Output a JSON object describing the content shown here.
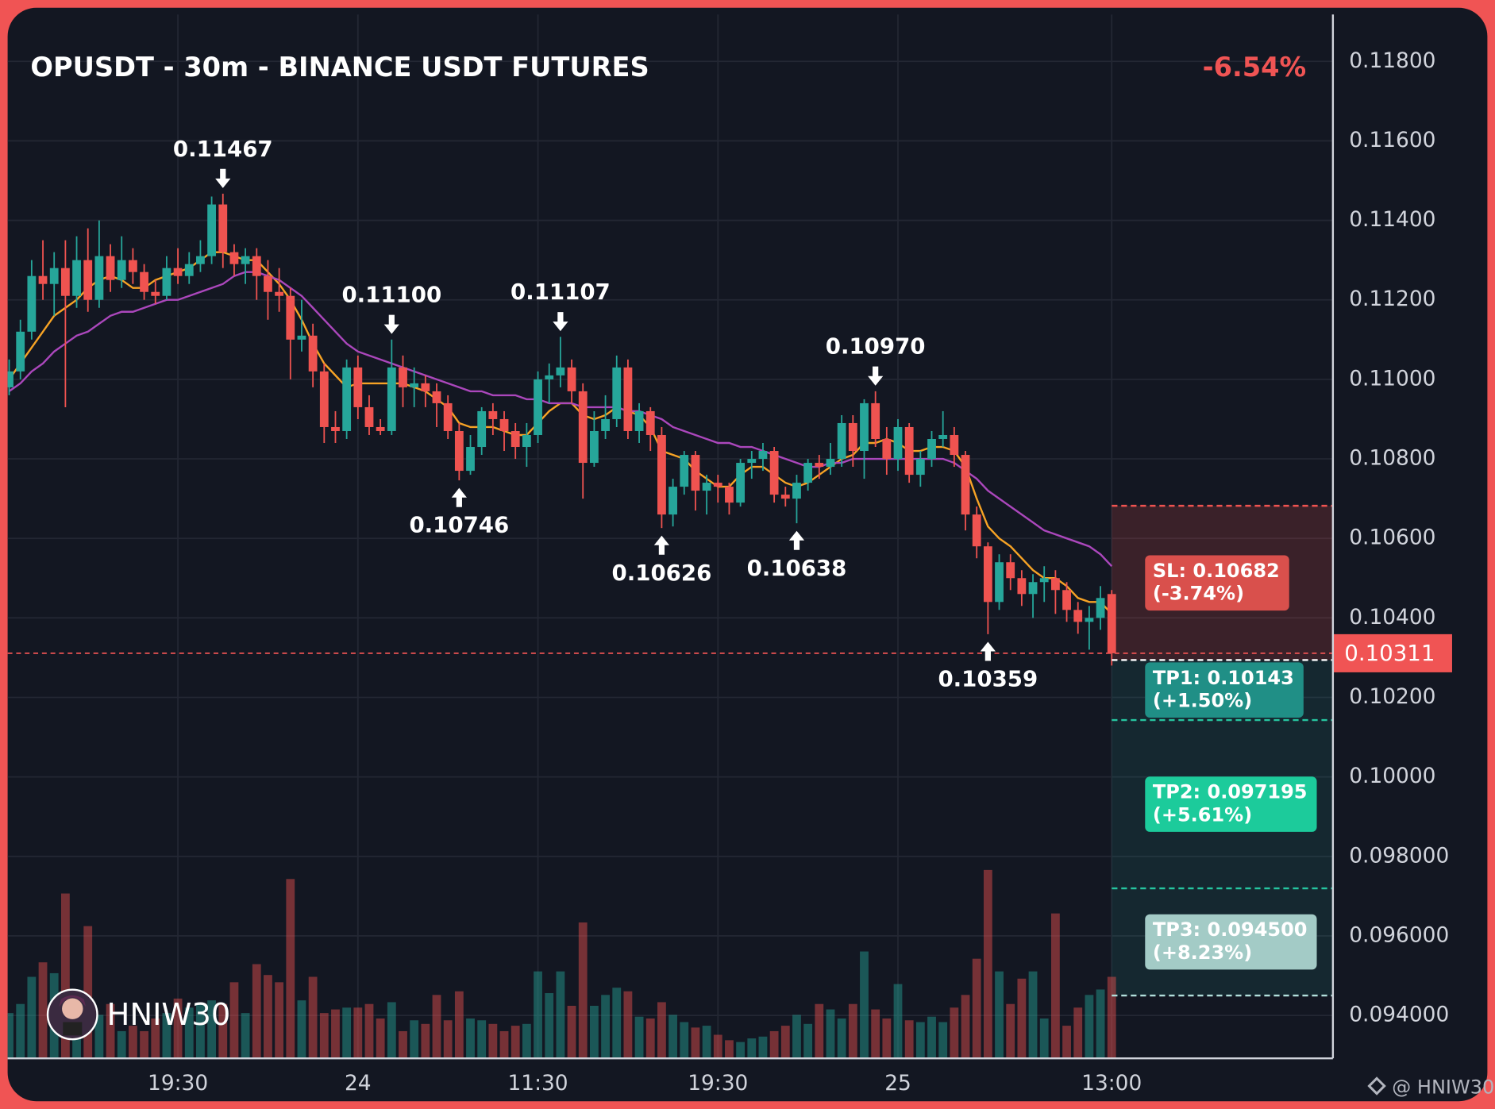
{
  "chart_data": {
    "type": "candlestick",
    "title": "OPUSDT - 30m - BINANCE USDT FUTURES",
    "change": "-6.54%",
    "up_color": "#26a69a",
    "down_color": "#ef5350",
    "grid": true,
    "ylim": [
      0.09292,
      0.11918
    ],
    "yticks": [
      {
        "value": 0.118,
        "label": "0.11800"
      },
      {
        "value": 0.116,
        "label": "0.11600"
      },
      {
        "value": 0.114,
        "label": "0.11400"
      },
      {
        "value": 0.112,
        "label": "0.11200"
      },
      {
        "value": 0.11,
        "label": "0.11000"
      },
      {
        "value": 0.108,
        "label": "0.10800"
      },
      {
        "value": 0.106,
        "label": "0.10600"
      },
      {
        "value": 0.104,
        "label": "0.10400"
      },
      {
        "value": 0.102,
        "label": "0.10200"
      },
      {
        "value": 0.1,
        "label": "0.10000"
      },
      {
        "value": 0.098,
        "label": "0.098000"
      },
      {
        "value": 0.096,
        "label": "0.096000"
      },
      {
        "value": 0.094,
        "label": "0.094000"
      }
    ],
    "categories": [
      null,
      null,
      null,
      null,
      null,
      null,
      null,
      null,
      null,
      null,
      null,
      null,
      null,
      null,
      null,
      "19:30",
      null,
      null,
      null,
      null,
      null,
      null,
      null,
      null,
      null,
      null,
      null,
      null,
      null,
      null,
      null,
      "24",
      null,
      null,
      null,
      null,
      null,
      null,
      null,
      null,
      null,
      null,
      null,
      null,
      null,
      null,
      null,
      "11:30",
      null,
      null,
      null,
      null,
      null,
      null,
      null,
      null,
      null,
      null,
      null,
      null,
      null,
      null,
      null,
      "19:30",
      null,
      null,
      null,
      null,
      null,
      null,
      null,
      null,
      null,
      null,
      null,
      null,
      null,
      null,
      null,
      "25",
      null,
      null,
      null,
      null,
      null,
      null,
      null,
      null,
      null,
      null,
      null,
      null,
      null,
      null,
      null,
      null,
      null,
      null,
      "13:00"
    ],
    "candles": [
      [
        0.1098,
        0.1105,
        0.1096,
        0.1102
      ],
      [
        0.1102,
        0.1115,
        0.11,
        0.1112
      ],
      [
        0.1112,
        0.113,
        0.111,
        0.1126
      ],
      [
        0.1126,
        0.1135,
        0.112,
        0.1124
      ],
      [
        0.1124,
        0.1132,
        0.1116,
        0.1128
      ],
      [
        0.1128,
        0.1135,
        0.1093,
        0.1121
      ],
      [
        0.1121,
        0.1136,
        0.1118,
        0.113
      ],
      [
        0.113,
        0.1138,
        0.1117,
        0.112
      ],
      [
        0.112,
        0.114,
        0.1118,
        0.1131
      ],
      [
        0.1131,
        0.1134,
        0.1122,
        0.1125
      ],
      [
        0.1125,
        0.1136,
        0.1123,
        0.113
      ],
      [
        0.113,
        0.1133,
        0.1124,
        0.1127
      ],
      [
        0.1127,
        0.1129,
        0.112,
        0.1122
      ],
      [
        0.1122,
        0.1125,
        0.1119,
        0.1121
      ],
      [
        0.1121,
        0.1131,
        0.112,
        0.1128
      ],
      [
        0.1128,
        0.1133,
        0.1124,
        0.1126
      ],
      [
        0.1126,
        0.1132,
        0.1124,
        0.1129
      ],
      [
        0.1129,
        0.1135,
        0.1127,
        0.1131
      ],
      [
        0.1131,
        0.1146,
        0.1129,
        0.1144
      ],
      [
        0.1144,
        0.11467,
        0.1128,
        0.1132
      ],
      [
        0.1132,
        0.1134,
        0.1126,
        0.1129
      ],
      [
        0.1129,
        0.1133,
        0.1124,
        0.1131
      ],
      [
        0.1131,
        0.1133,
        0.112,
        0.1126
      ],
      [
        0.1126,
        0.113,
        0.1115,
        0.1122
      ],
      [
        0.1122,
        0.1128,
        0.1117,
        0.1121
      ],
      [
        0.1121,
        0.1123,
        0.11,
        0.111
      ],
      [
        0.111,
        0.112,
        0.1107,
        0.1111
      ],
      [
        0.1111,
        0.1114,
        0.1098,
        0.1102
      ],
      [
        0.1102,
        0.1104,
        0.1084,
        0.1088
      ],
      [
        0.1088,
        0.1092,
        0.1084,
        0.1087
      ],
      [
        0.1087,
        0.1105,
        0.1085,
        0.1103
      ],
      [
        0.1103,
        0.1106,
        0.109,
        0.1093
      ],
      [
        0.1093,
        0.1096,
        0.1086,
        0.1088
      ],
      [
        0.1088,
        0.109,
        0.1086,
        0.1087
      ],
      [
        0.1087,
        0.111,
        0.1086,
        0.1103
      ],
      [
        0.1103,
        0.1106,
        0.1093,
        0.1098
      ],
      [
        0.1098,
        0.1103,
        0.1093,
        0.1099
      ],
      [
        0.1099,
        0.1101,
        0.1093,
        0.1097
      ],
      [
        0.1097,
        0.1099,
        0.1088,
        0.1094
      ],
      [
        0.1094,
        0.1096,
        0.1085,
        0.1087
      ],
      [
        0.1087,
        0.1089,
        0.10746,
        0.1077
      ],
      [
        0.1077,
        0.1086,
        0.1076,
        0.1083
      ],
      [
        0.1083,
        0.1093,
        0.1081,
        0.1092
      ],
      [
        0.1092,
        0.1094,
        0.1086,
        0.109
      ],
      [
        0.109,
        0.1092,
        0.1082,
        0.1087
      ],
      [
        0.1087,
        0.1089,
        0.108,
        0.1083
      ],
      [
        0.1083,
        0.1089,
        0.1078,
        0.1086
      ],
      [
        0.1086,
        0.1102,
        0.1084,
        0.11
      ],
      [
        0.11,
        0.1104,
        0.1094,
        0.1101
      ],
      [
        0.1101,
        0.11107,
        0.1098,
        0.1103
      ],
      [
        0.1103,
        0.1105,
        0.1094,
        0.1097
      ],
      [
        0.1097,
        0.1099,
        0.107,
        0.1079
      ],
      [
        0.1079,
        0.1092,
        0.1078,
        0.1087
      ],
      [
        0.1087,
        0.1096,
        0.1085,
        0.109
      ],
      [
        0.109,
        0.1106,
        0.1088,
        0.1103
      ],
      [
        0.1103,
        0.1105,
        0.1085,
        0.1087
      ],
      [
        0.1087,
        0.1094,
        0.1084,
        0.1092
      ],
      [
        0.1092,
        0.1093,
        0.1082,
        0.1086
      ],
      [
        0.1086,
        0.1088,
        0.10626,
        0.1066
      ],
      [
        0.1066,
        0.1075,
        0.1063,
        0.1073
      ],
      [
        0.1073,
        0.1082,
        0.1071,
        0.1081
      ],
      [
        0.1081,
        0.1082,
        0.1067,
        0.1072
      ],
      [
        0.1072,
        0.1076,
        0.1066,
        0.1074
      ],
      [
        0.1074,
        0.1076,
        0.1069,
        0.1073
      ],
      [
        0.1073,
        0.1074,
        0.1066,
        0.1069
      ],
      [
        0.1069,
        0.108,
        0.1068,
        0.1079
      ],
      [
        0.1079,
        0.1082,
        0.1075,
        0.108
      ],
      [
        0.108,
        0.1084,
        0.1077,
        0.1082
      ],
      [
        0.1082,
        0.1083,
        0.1069,
        0.1071
      ],
      [
        0.1071,
        0.1073,
        0.1068,
        0.107
      ],
      [
        0.107,
        0.1076,
        0.10638,
        0.1074
      ],
      [
        0.1074,
        0.108,
        0.1072,
        0.1079
      ],
      [
        0.1079,
        0.1081,
        0.1075,
        0.1078
      ],
      [
        0.1078,
        0.1084,
        0.1076,
        0.108
      ],
      [
        0.108,
        0.1091,
        0.1078,
        0.1089
      ],
      [
        0.1089,
        0.1091,
        0.1078,
        0.1082
      ],
      [
        0.1082,
        0.1095,
        0.1075,
        0.1094
      ],
      [
        0.1094,
        0.1097,
        0.1083,
        0.1085
      ],
      [
        0.1085,
        0.1088,
        0.1076,
        0.108
      ],
      [
        0.108,
        0.109,
        0.1077,
        0.1088
      ],
      [
        0.1088,
        0.1089,
        0.1074,
        0.1076
      ],
      [
        0.1076,
        0.1082,
        0.1073,
        0.108
      ],
      [
        0.108,
        0.1087,
        0.1078,
        0.1085
      ],
      [
        0.1085,
        0.1092,
        0.1083,
        0.1086
      ],
      [
        0.1086,
        0.1088,
        0.1078,
        0.1081
      ],
      [
        0.1081,
        0.1082,
        0.1062,
        0.1066
      ],
      [
        0.1066,
        0.1068,
        0.1055,
        0.1058
      ],
      [
        0.1058,
        0.1059,
        0.10359,
        0.1044
      ],
      [
        0.1044,
        0.1056,
        0.1042,
        0.1054
      ],
      [
        0.1054,
        0.1056,
        0.1047,
        0.105
      ],
      [
        0.105,
        0.1052,
        0.1043,
        0.1046
      ],
      [
        0.1046,
        0.1051,
        0.104,
        0.1049
      ],
      [
        0.1049,
        0.1053,
        0.1044,
        0.105
      ],
      [
        0.105,
        0.1052,
        0.1041,
        0.1047
      ],
      [
        0.1047,
        0.1049,
        0.1039,
        0.1042
      ],
      [
        0.1042,
        0.1044,
        0.1036,
        0.1039
      ],
      [
        0.1039,
        0.1043,
        0.1032,
        0.104
      ],
      [
        0.104,
        0.1048,
        0.1037,
        0.1045
      ],
      [
        0.1046,
        0.1047,
        0.1028,
        0.10311
      ]
    ],
    "volume_lim": [
      0,
      110
    ],
    "volume": [
      25,
      30,
      45,
      53,
      47,
      91,
      38,
      73,
      24,
      30,
      15,
      18,
      15,
      22,
      25,
      33,
      28,
      30,
      32,
      30,
      42,
      25,
      52,
      46,
      42,
      99,
      32,
      45,
      25,
      27,
      28,
      28,
      30,
      22,
      31,
      15,
      21,
      19,
      35,
      21,
      37,
      22,
      21,
      19,
      15,
      18,
      19,
      48,
      36,
      48,
      29,
      75,
      29,
      35,
      39,
      37,
      23,
      22,
      31,
      24,
      20,
      17,
      18,
      13,
      10,
      9,
      11,
      12,
      15,
      18,
      24,
      19,
      30,
      27,
      22,
      30,
      59,
      27,
      22,
      41,
      21,
      20,
      23,
      20,
      28,
      35,
      55,
      104,
      48,
      30,
      44,
      48,
      22,
      80,
      18,
      28,
      35,
      38,
      45
    ],
    "ma": [
      {
        "color": "#f7a325",
        "values": [
          0.11,
          0.1104,
          0.1108,
          0.1112,
          0.1116,
          0.1118,
          0.112,
          0.1123,
          0.1125,
          0.1126,
          0.1125,
          0.1123,
          0.1123,
          0.1125,
          0.1126,
          0.1127,
          0.1128,
          0.113,
          0.1132,
          0.1132,
          0.1131,
          0.113,
          0.113,
          0.1127,
          0.1124,
          0.112,
          0.1115,
          0.1109,
          0.1104,
          0.1101,
          0.1098,
          0.1099,
          0.1099,
          0.1099,
          0.1099,
          0.1099,
          0.1098,
          0.1097,
          0.1095,
          0.1093,
          0.1089,
          0.1088,
          0.1088,
          0.1088,
          0.1087,
          0.1086,
          0.1086,
          0.1089,
          0.1092,
          0.1094,
          0.1094,
          0.1091,
          0.109,
          0.1091,
          0.1093,
          0.1092,
          0.1091,
          0.1088,
          0.1082,
          0.1081,
          0.108,
          0.1077,
          0.1075,
          0.1073,
          0.1073,
          0.1076,
          0.1078,
          0.1078,
          0.1076,
          0.1074,
          0.1073,
          0.1074,
          0.1076,
          0.1078,
          0.108,
          0.1081,
          0.1084,
          0.1084,
          0.1085,
          0.1084,
          0.1082,
          0.1082,
          0.1083,
          0.1083,
          0.1082,
          0.1078,
          0.107,
          0.1063,
          0.106,
          0.1058,
          0.1055,
          0.1052,
          0.105,
          0.105,
          0.1048,
          0.1045,
          0.1044,
          0.1044,
          0.1041
        ]
      },
      {
        "color": "#ab47bc",
        "values": [
          0.1097,
          0.1099,
          0.1102,
          0.1104,
          0.1107,
          0.1109,
          0.1111,
          0.1112,
          0.1114,
          0.1116,
          0.1117,
          0.1117,
          0.1118,
          0.1119,
          0.112,
          0.112,
          0.1121,
          0.1122,
          0.1123,
          0.1124,
          0.1126,
          0.1127,
          0.1127,
          0.1126,
          0.1125,
          0.1123,
          0.1121,
          0.1118,
          0.1115,
          0.1112,
          0.1109,
          0.1107,
          0.1106,
          0.1105,
          0.1104,
          0.1103,
          0.1102,
          0.1101,
          0.11,
          0.1099,
          0.1098,
          0.1097,
          0.1097,
          0.1096,
          0.1096,
          0.1096,
          0.1095,
          0.1095,
          0.1094,
          0.1094,
          0.1094,
          0.1093,
          0.1093,
          0.1093,
          0.1093,
          0.1092,
          0.1092,
          0.1091,
          0.109,
          0.1088,
          0.1087,
          0.1086,
          0.1085,
          0.1084,
          0.1084,
          0.1083,
          0.1083,
          0.1082,
          0.1081,
          0.108,
          0.1079,
          0.1078,
          0.1078,
          0.1079,
          0.1079,
          0.108,
          0.108,
          0.108,
          0.108,
          0.108,
          0.108,
          0.108,
          0.108,
          0.108,
          0.1079,
          0.1077,
          0.1075,
          0.1072,
          0.107,
          0.1068,
          0.1066,
          0.1064,
          0.1062,
          0.1061,
          0.106,
          0.1059,
          0.1058,
          0.1056,
          0.1053
        ]
      }
    ],
    "annotations": [
      0.11467,
      {
        "value": 0.111,
        "label": "0.11100"
      },
      0.10746,
      0.11107,
      0.10626,
      0.10638,
      {
        "value": 0.1097,
        "label": "0.10970"
      },
      0.10359
    ],
    "entry": 0.10294,
    "levels": [
      {
        "label": "SL: 0.10682",
        "note": "(-3.74%)",
        "value": 0.10682,
        "box_color": "#d9504c",
        "line_color": "#ef5350"
      },
      {
        "label": "TP1: 0.10143",
        "note": "(+1.50%)",
        "value": 0.10143,
        "box_color": "#208f86",
        "line_color": "#26c6a0"
      },
      {
        "label": "TP2: 0.097195",
        "note": "(+5.61%)",
        "value": 0.097195,
        "box_color": "#1ccb9b",
        "line_color": "#26c6a0"
      },
      {
        "label": "TP3: 0.094500",
        "note": "(+8.23%)",
        "value": 0.0945,
        "box_color": "#a3cbc6",
        "line_color": "#b2dfdb"
      }
    ]
  },
  "watermark": "HNIW30",
  "credit": "@ HNIW30"
}
